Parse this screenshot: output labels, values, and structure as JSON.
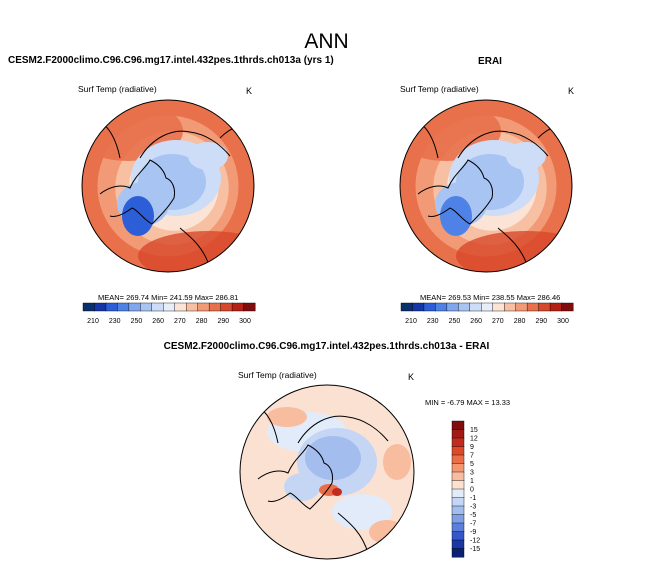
{
  "figure": {
    "title": "ANN",
    "panels": [
      {
        "title": "CESM2.F2000climo.C96.C96.mg17.intel.432pes.1thrds.ch013a (yrs 1)",
        "variable": "Surf Temp (radiative)",
        "units": "K",
        "stats_text": "MEAN= 269.74  Min= 241.59  Max= 286.81",
        "stats": {
          "mean": 269.74,
          "min": 241.59,
          "max": 286.81
        }
      },
      {
        "title": "ERAI",
        "variable": "Surf Temp (radiative)",
        "units": "K",
        "stats_text": "MEAN= 269.53  Min= 238.55  Max= 286.46",
        "stats": {
          "mean": 269.53,
          "min": 238.55,
          "max": 286.46
        }
      },
      {
        "title": "CESM2.F2000climo.C96.C96.mg17.intel.432pes.1thrds.ch013a - ERAI",
        "variable": "Surf Temp (radiative)",
        "units": "K",
        "stats_text": "MIN =  -6.79 MAX =  13.33",
        "stats": {
          "min": -6.79,
          "max": 13.33
        }
      }
    ]
  },
  "chart_data": [
    {
      "type": "heatmap",
      "projection": "polar stereographic (north)",
      "title": "CESM2.F2000climo.C96.C96.mg17.intel.432pes.1thrds.ch013a (yrs 1)",
      "variable": "Surf Temp (radiative)",
      "units": "K",
      "mean": 269.74,
      "min": 241.59,
      "max": 286.81,
      "colorbar": {
        "orientation": "horizontal",
        "levels": [
          210,
          230,
          250,
          260,
          270,
          280,
          290,
          300
        ],
        "colors": [
          "#08306b",
          "#1436a8",
          "#2c5ed8",
          "#4f82e6",
          "#7fa6ee",
          "#a8c4f3",
          "#cddcf7",
          "#e8eef9",
          "#fbe3d6",
          "#f7c0a3",
          "#f29a76",
          "#e8714c",
          "#d8482b",
          "#b52215",
          "#7f0d0d"
        ]
      }
    },
    {
      "type": "heatmap",
      "projection": "polar stereographic (north)",
      "title": "ERAI",
      "variable": "Surf Temp (radiative)",
      "units": "K",
      "mean": 269.53,
      "min": 238.55,
      "max": 286.46,
      "colorbar": {
        "orientation": "horizontal",
        "levels": [
          210,
          230,
          250,
          260,
          270,
          280,
          290,
          300
        ],
        "colors": [
          "#08306b",
          "#1436a8",
          "#2c5ed8",
          "#4f82e6",
          "#7fa6ee",
          "#a8c4f3",
          "#cddcf7",
          "#e8eef9",
          "#fbe3d6",
          "#f7c0a3",
          "#f29a76",
          "#e8714c",
          "#d8482b",
          "#b52215",
          "#7f0d0d"
        ]
      }
    },
    {
      "type": "heatmap",
      "projection": "polar stereographic (north)",
      "title": "CESM2.F2000climo.C96.C96.mg17.intel.432pes.1thrds.ch013a - ERAI",
      "variable": "Surf Temp (radiative)",
      "units": "K",
      "min": -6.79,
      "max": 13.33,
      "colorbar": {
        "orientation": "vertical",
        "levels": [
          15,
          12,
          9,
          7,
          5,
          3,
          1,
          0,
          -1,
          -3,
          -5,
          -7,
          -9,
          -12,
          -15
        ],
        "colors": [
          "#7f0d0d",
          "#a11a16",
          "#c22c1e",
          "#dc4a2c",
          "#ec6e48",
          "#f49670",
          "#f8bc9e",
          "#fbe1d2",
          "#e2ebf9",
          "#c4d6f4",
          "#a3bdee",
          "#7f9fe6",
          "#5b7fdb",
          "#3657c9",
          "#1a37a4",
          "#0a2070"
        ]
      }
    }
  ]
}
